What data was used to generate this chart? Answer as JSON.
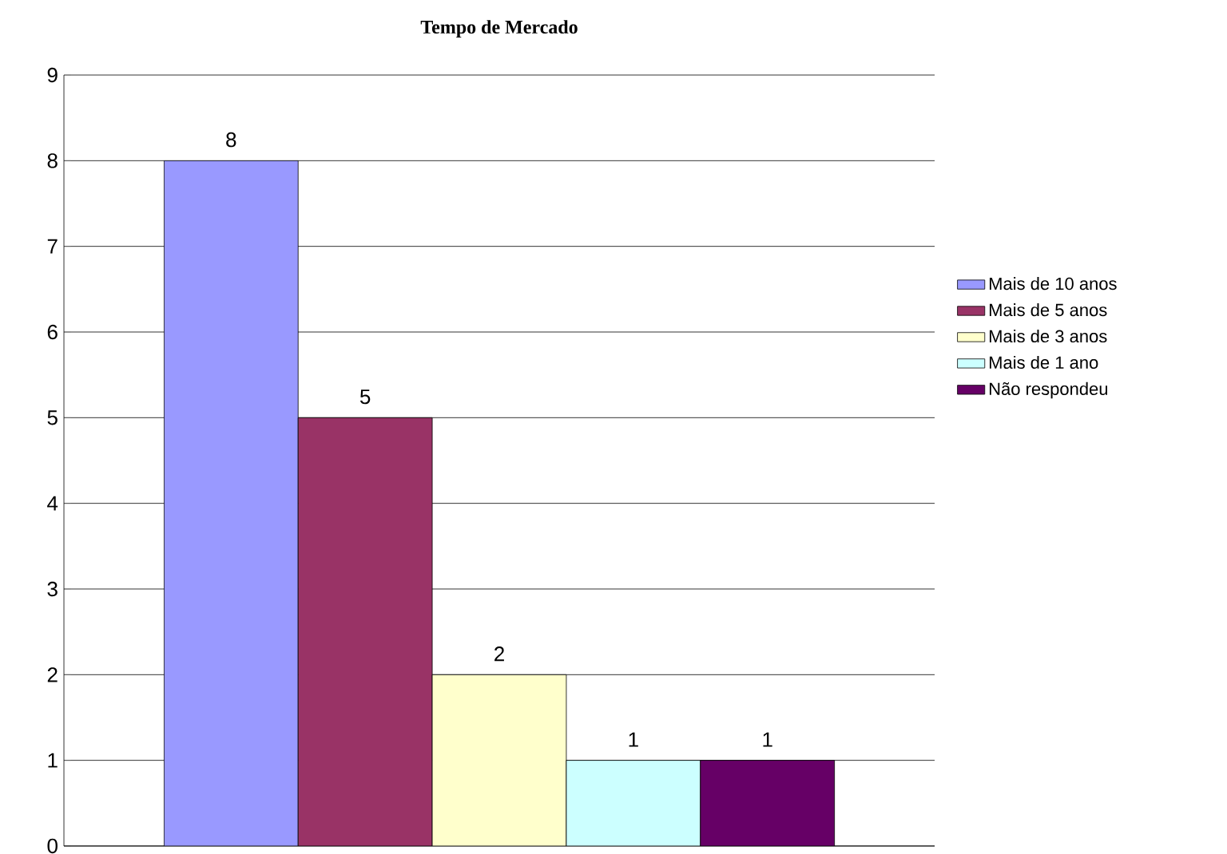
{
  "chart_data": {
    "type": "bar",
    "title": "Tempo de Mercado",
    "categories": [
      null
    ],
    "series": [
      {
        "name": "Mais de 10 anos",
        "color": "#9999ff",
        "values": [
          8
        ]
      },
      {
        "name": "Mais de 5 anos",
        "color": "#993366",
        "values": [
          5
        ]
      },
      {
        "name": "Mais de 3 anos",
        "color": "#ffffcc",
        "values": [
          2
        ]
      },
      {
        "name": "Mais de 1 ano",
        "color": "#ccffff",
        "values": [
          1
        ]
      },
      {
        "name": "Não respondeu",
        "color": "#660066",
        "values": [
          1
        ]
      }
    ],
    "ylim": [
      0,
      9
    ],
    "yticks": [
      0,
      1,
      2,
      3,
      4,
      5,
      6,
      7,
      8,
      9
    ],
    "grid": "y",
    "legend": "right",
    "data_labels": true
  }
}
